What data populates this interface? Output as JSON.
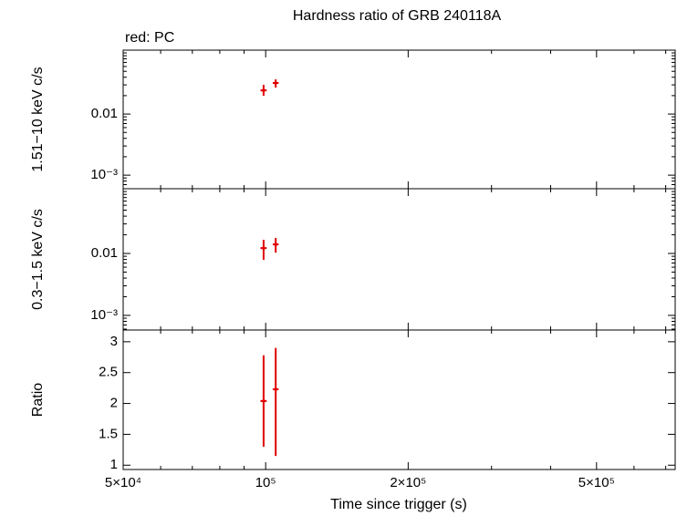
{
  "chart_data": [
    {
      "type": "scatter",
      "title": "Hardness ratio of GRB 240118A",
      "annotation": "red: PC",
      "ylabel": "1.51−10 keV c/s",
      "yscale": "log",
      "xscale": "log",
      "xlim": [
        50000,
        733000
      ],
      "ylim": [
        0.0006,
        0.111
      ],
      "yticks": [
        {
          "value": 0.001,
          "label": "10⁻³"
        },
        0.01
      ],
      "yminor": [
        0.0007,
        0.0008,
        0.0009,
        0.002,
        0.003,
        0.004,
        0.005,
        0.006,
        0.007,
        0.008,
        0.009,
        0.02,
        0.03,
        0.04,
        0.05,
        0.06,
        0.07,
        0.08,
        0.09,
        0.1
      ],
      "series": [
        {
          "color": "#e00000",
          "x": [
            99000,
            105000
          ],
          "xlow": [
            97500,
            103500
          ],
          "xhigh": [
            100500,
            106500
          ],
          "values": [
            0.0244,
            0.0322
          ],
          "ylow": [
            0.0199,
            0.0271
          ],
          "yhigh": [
            0.03,
            0.0369
          ]
        }
      ]
    },
    {
      "type": "scatter",
      "ylabel": "0.3−1.5 keV c/s",
      "yscale": "log",
      "xscale": "log",
      "xlim": [
        50000,
        733000
      ],
      "ylim": [
        0.00058,
        0.111
      ],
      "yticks": [
        {
          "value": 0.001,
          "label": "10⁻³"
        },
        0.01
      ],
      "yminor": [
        0.0006,
        0.0007,
        0.0008,
        0.0009,
        0.002,
        0.003,
        0.004,
        0.005,
        0.006,
        0.007,
        0.008,
        0.009,
        0.02,
        0.03,
        0.04,
        0.05,
        0.06,
        0.07,
        0.08,
        0.09,
        0.1
      ],
      "series": [
        {
          "color": "#e00000",
          "x": [
            99000,
            105000
          ],
          "xlow": [
            97500,
            103500
          ],
          "xhigh": [
            100500,
            106500
          ],
          "values": [
            0.0122,
            0.014
          ],
          "ylow": [
            0.0079,
            0.0103
          ],
          "yhigh": [
            0.0166,
            0.0178
          ]
        }
      ]
    },
    {
      "type": "scatter",
      "ylabel": "Ratio",
      "xlabel": "Time since trigger (s)",
      "yscale": "linear",
      "xscale": "log",
      "xlim": [
        50000,
        733000
      ],
      "ylim": [
        0.93,
        3.19
      ],
      "yticks": [
        1,
        1.5,
        2,
        2.5,
        3
      ],
      "xticks": [
        {
          "value": 50000,
          "label": "5×10⁴"
        },
        {
          "value": 100000,
          "label": "10⁵"
        },
        {
          "value": 200000,
          "label": "2×10⁵"
        },
        {
          "value": 500000,
          "label": "5×10⁵"
        }
      ],
      "xminor": [
        60000,
        70000,
        80000,
        90000,
        300000,
        400000,
        600000,
        700000
      ],
      "series": [
        {
          "color": "#e00000",
          "x": [
            99000,
            105000
          ],
          "xlow": [
            97500,
            103500
          ],
          "xhigh": [
            100500,
            106500
          ],
          "values": [
            2.04,
            2.23
          ],
          "ylow": [
            1.3,
            1.15
          ],
          "yhigh": [
            2.78,
            2.9
          ]
        }
      ]
    }
  ]
}
